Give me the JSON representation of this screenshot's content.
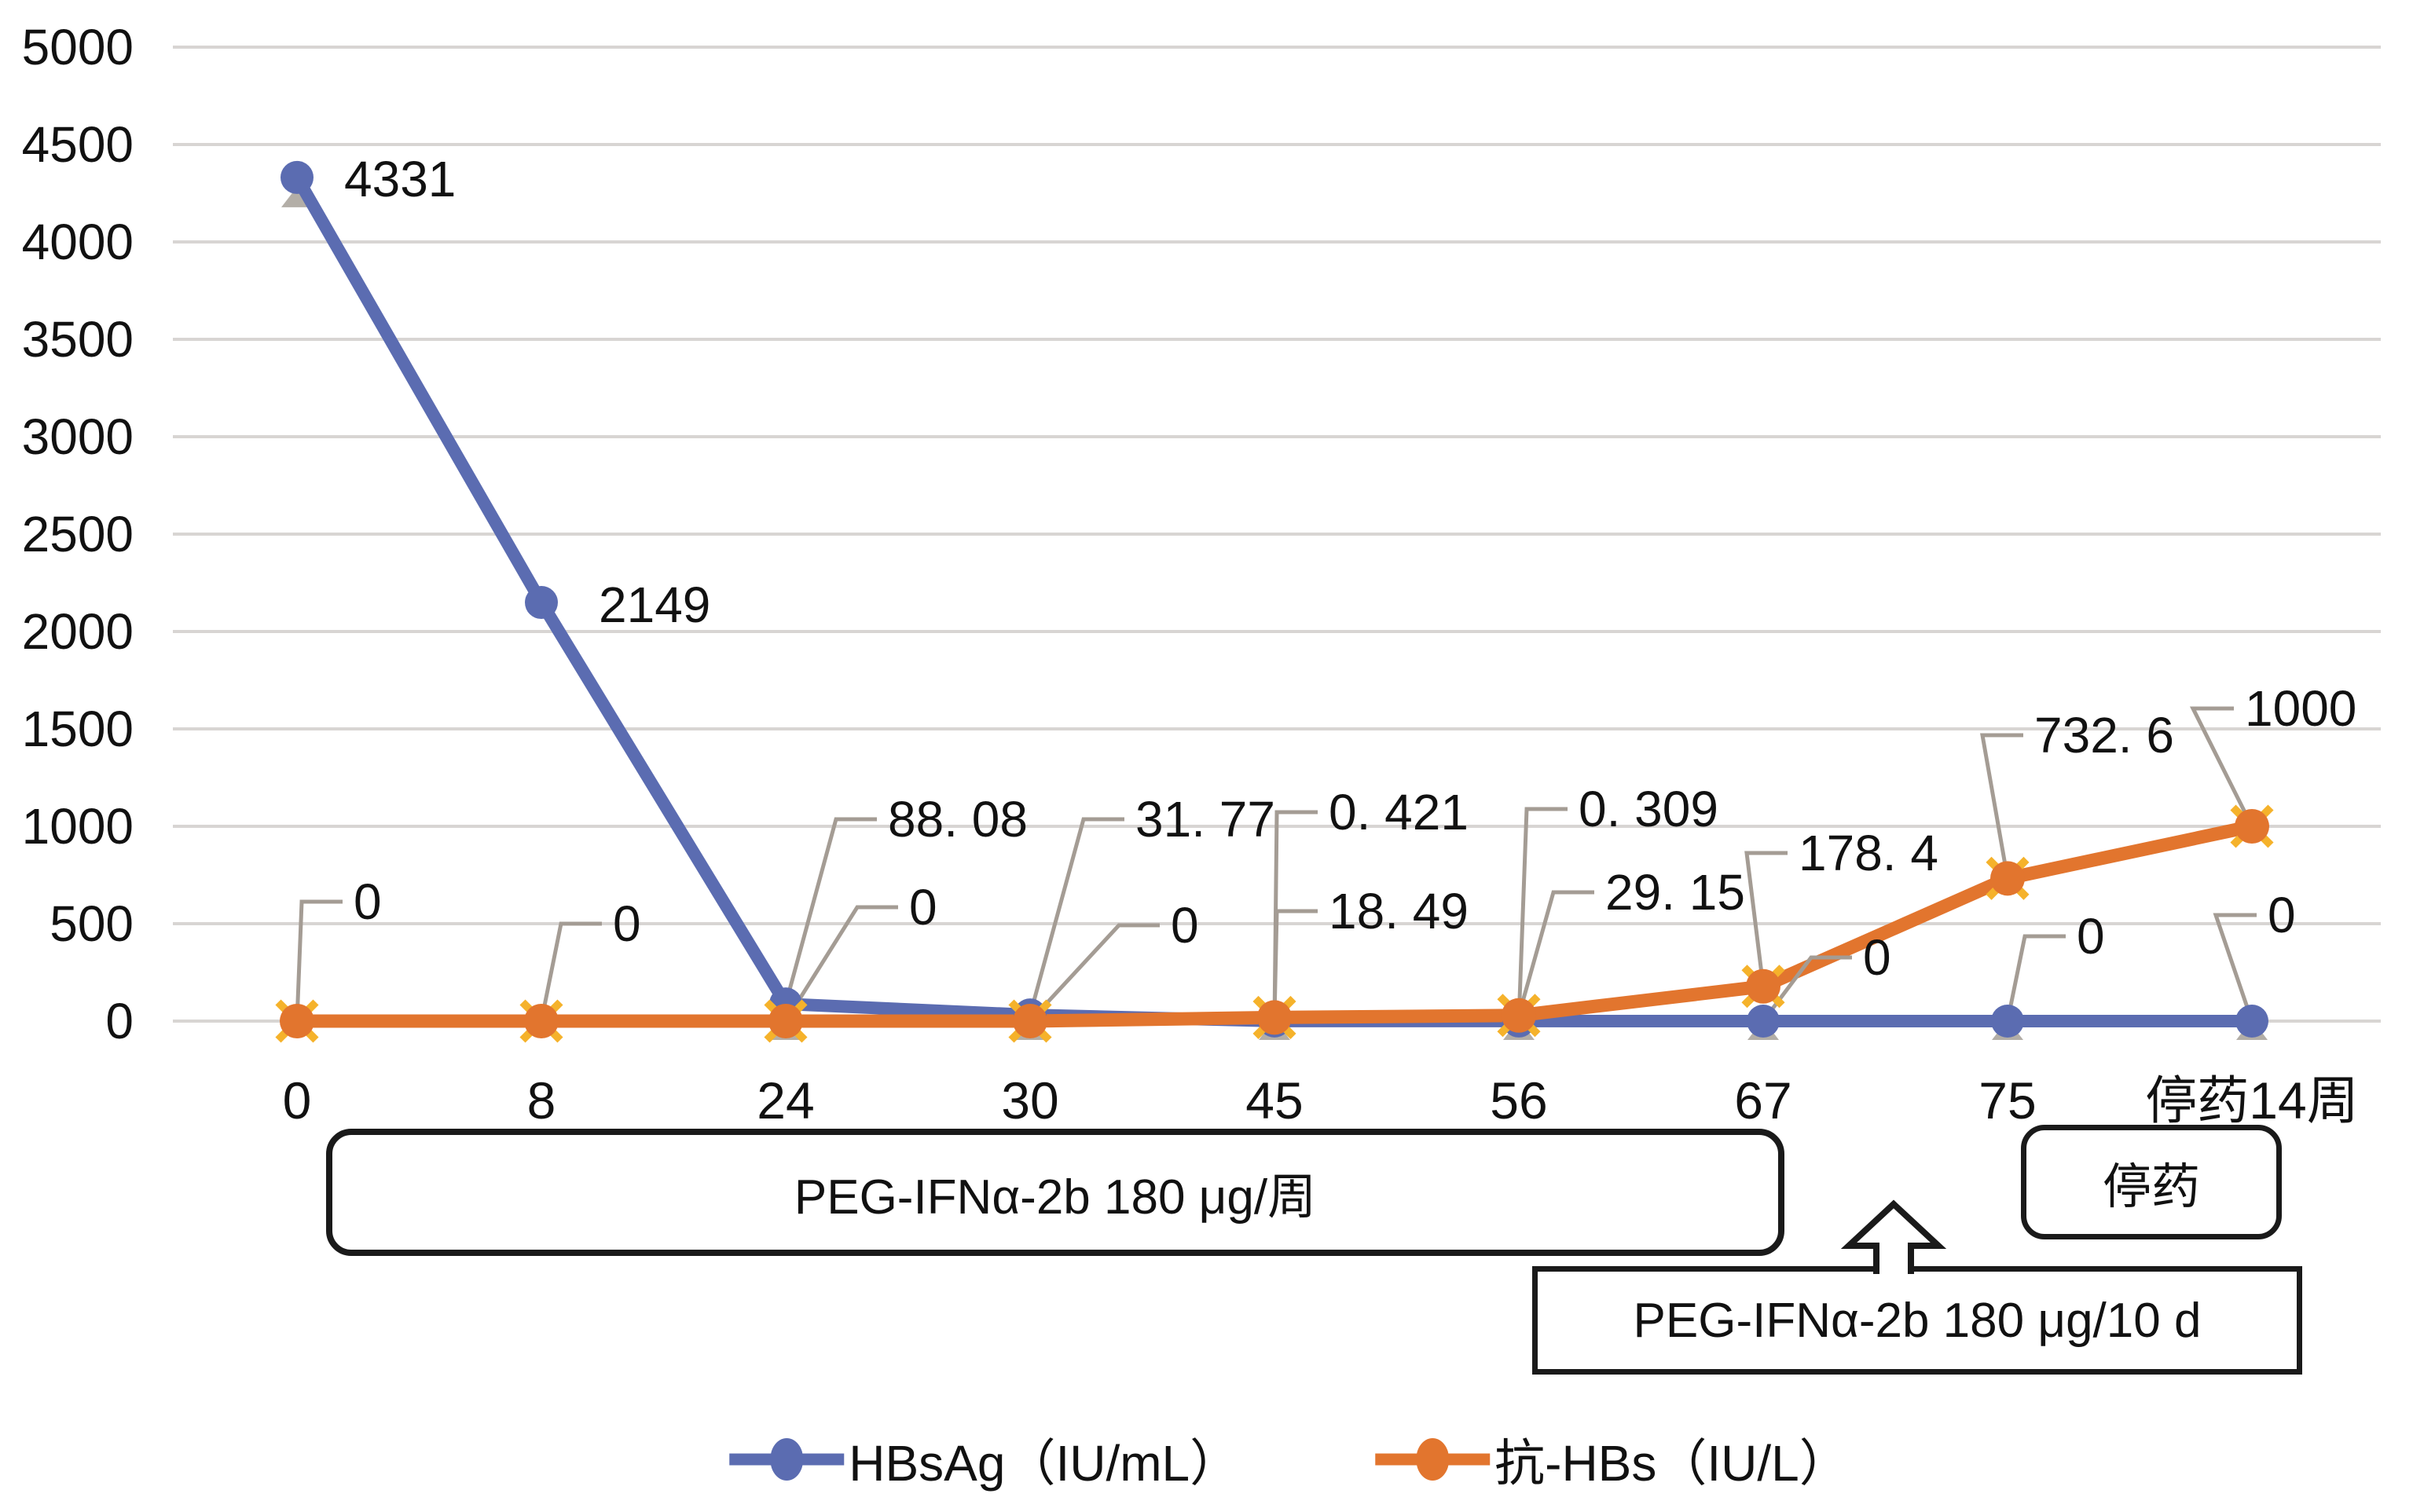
{
  "chart_data": {
    "type": "line",
    "categories": [
      "0",
      "8",
      "24",
      "30",
      "45",
      "56",
      "67",
      "75",
      "停药14周"
    ],
    "series": [
      {
        "name": "HBsAg（IU/mL）",
        "color": "#5B6CB1",
        "marker": "circle",
        "values": [
          4331,
          2149,
          88.08,
          31.77,
          0.421,
          0.309,
          0,
          0,
          0
        ],
        "point_labels": [
          "4331",
          "2149",
          "88. 08",
          "31. 77",
          "0. 421",
          "0. 309",
          "0",
          "0",
          "0"
        ],
        "label_anchor": [
          [
            438,
            228
          ],
          [
            762,
            770
          ],
          [
            1130,
            1043
          ],
          [
            1445,
            1043
          ],
          [
            1691,
            1034
          ],
          [
            2009,
            1030
          ],
          [
            2371,
            1219
          ],
          [
            2643,
            1192
          ],
          [
            2886,
            1165
          ]
        ],
        "label_leader": [
          false,
          false,
          true,
          true,
          true,
          true,
          true,
          true,
          true
        ]
      },
      {
        "name": "抗-HBs（IU/L）",
        "color": "#E2752E",
        "marker": "circle-x",
        "marker_x_color": "#F5B22B",
        "values": [
          0,
          0,
          0,
          0,
          18.49,
          29.15,
          178.4,
          732.6,
          1000
        ],
        "point_labels": [
          "0",
          "0",
          "0",
          "0",
          "18. 49",
          "29. 15",
          "178. 4",
          "732. 6",
          "1000"
        ],
        "label_anchor": [
          [
            450,
            1148
          ],
          [
            780,
            1176
          ],
          [
            1157,
            1155
          ],
          [
            1490,
            1178
          ],
          [
            1691,
            1160
          ],
          [
            2043,
            1136
          ],
          [
            2289,
            1086
          ],
          [
            2589,
            936
          ],
          [
            2857,
            902
          ]
        ],
        "label_leader": [
          true,
          true,
          true,
          true,
          true,
          true,
          true,
          true,
          true
        ]
      }
    ],
    "ylim": [
      0,
      5000
    ],
    "yticks": [
      "0",
      "500",
      "1000",
      "1500",
      "2000",
      "2500",
      "3000",
      "3500",
      "4000",
      "4500",
      "5000"
    ],
    "grid": true,
    "legend_position": "bottom",
    "gridline_color": "#D8D5D3",
    "leader_color": "#A49C94",
    "triangle_color": "#B3AEA7",
    "text_color": "#111111"
  },
  "annotations": {
    "treatment1": "PEG-IFNα-2b 180 μg/周",
    "withdraw": "停药",
    "treatment2": "PEG-IFNα-2b 180 μg/10 d"
  }
}
